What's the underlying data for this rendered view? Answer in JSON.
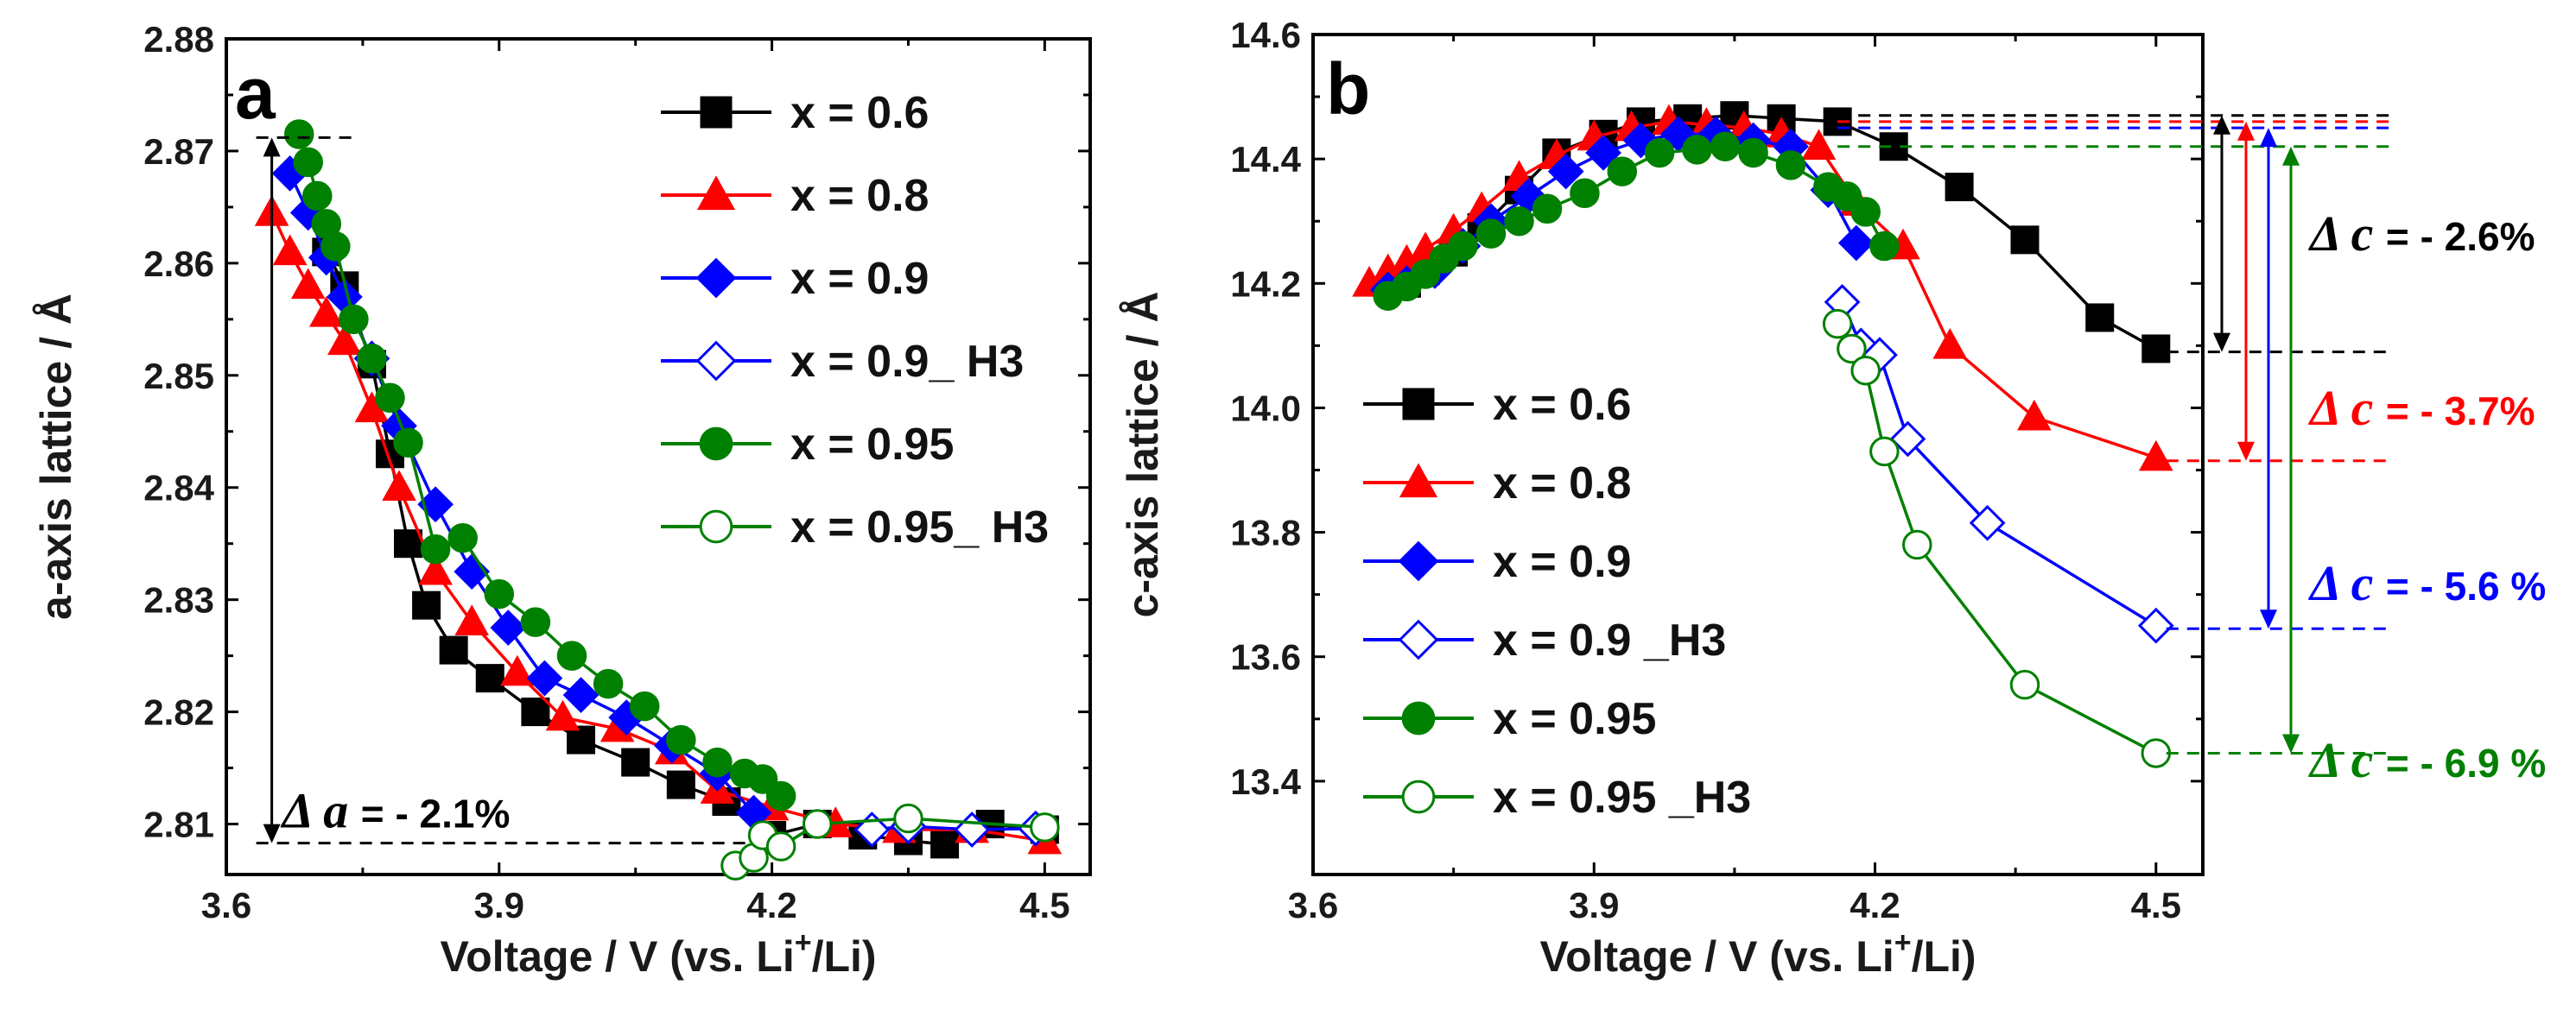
{
  "chart_data": [
    {
      "type": "line",
      "panel_label": "a",
      "xlabel": "Voltage / V (vs. Li",
      "xlabel_sup": "+",
      "xlabel_tail": "/Li)",
      "ylabel": "a-axis lattice / Å",
      "xlim": [
        3.6,
        4.55
      ],
      "ylim": [
        2.8055,
        2.88
      ],
      "xticks": [
        3.6,
        3.9,
        4.2,
        4.5
      ],
      "xtick_labels": [
        "3.6",
        "3.9",
        "4.2",
        "4.5"
      ],
      "yticks": [
        2.81,
        2.82,
        2.83,
        2.84,
        2.85,
        2.86,
        2.87,
        2.88
      ],
      "ytick_labels": [
        "2.81",
        "2.82",
        "2.83",
        "2.84",
        "2.85",
        "2.86",
        "2.87",
        "2.88"
      ],
      "legend_position": "top-right",
      "series": [
        {
          "name": "x = 0.6",
          "color": "#000000",
          "marker": "square",
          "filled": true,
          "x": [
            3.71,
            3.73,
            3.76,
            3.78,
            3.8,
            3.82,
            3.85,
            3.89,
            3.94,
            3.99,
            4.05,
            4.1,
            4.15,
            4.2,
            4.25,
            4.3,
            4.35,
            4.39,
            4.44,
            4.5
          ],
          "y": [
            2.861,
            2.858,
            2.851,
            2.843,
            2.835,
            2.8295,
            2.8255,
            2.823,
            2.82,
            2.8175,
            2.8155,
            2.8135,
            2.812,
            2.809,
            2.81,
            2.809,
            2.8085,
            2.8082,
            2.81,
            2.8095
          ]
        },
        {
          "name": "x = 0.8",
          "color": "#ff0000",
          "marker": "triangle",
          "filled": true,
          "x": [
            3.65,
            3.67,
            3.69,
            3.71,
            3.73,
            3.76,
            3.79,
            3.83,
            3.87,
            3.92,
            3.97,
            4.03,
            4.09,
            4.14,
            4.2,
            4.27,
            4.34,
            4.42,
            4.5
          ],
          "y": [
            2.8645,
            2.861,
            2.858,
            2.8555,
            2.853,
            2.847,
            2.84,
            2.8325,
            2.828,
            2.8235,
            2.8195,
            2.8185,
            2.8165,
            2.813,
            2.8115,
            2.81,
            2.8095,
            2.8095,
            2.8085
          ]
        },
        {
          "name": "x = 0.9",
          "color": "#0000ff",
          "marker": "diamond",
          "filled": true,
          "x": [
            3.67,
            3.69,
            3.71,
            3.73,
            3.76,
            3.79,
            3.83,
            3.87,
            3.91,
            3.95,
            3.99,
            4.04,
            4.09,
            4.14,
            4.18
          ],
          "y": [
            2.868,
            2.8645,
            2.8605,
            2.857,
            2.8515,
            2.8455,
            2.8385,
            2.8325,
            2.8275,
            2.823,
            2.8215,
            2.8195,
            2.817,
            2.8145,
            2.811
          ]
        },
        {
          "name": "x = 0.9_ H3",
          "color": "#0000ff",
          "marker": "diamond",
          "filled": false,
          "x": [
            4.31,
            4.35,
            4.42,
            4.49
          ],
          "y": [
            2.8095,
            2.8098,
            2.8095,
            2.8096
          ]
        },
        {
          "name": "x = 0.95",
          "color": "#008000",
          "marker": "circle",
          "filled": true,
          "x": [
            3.68,
            3.69,
            3.7,
            3.71,
            3.72,
            3.74,
            3.76,
            3.78,
            3.8,
            3.83,
            3.86,
            3.9,
            3.94,
            3.98,
            4.02,
            4.06,
            4.1,
            4.14,
            4.17,
            4.19,
            4.21
          ],
          "y": [
            2.8715,
            2.869,
            2.866,
            2.8635,
            2.8615,
            2.855,
            2.8515,
            2.848,
            2.844,
            2.8345,
            2.8355,
            2.8305,
            2.828,
            2.825,
            2.8225,
            2.8205,
            2.8175,
            2.8155,
            2.8145,
            2.814,
            2.8125
          ]
        },
        {
          "name": "x = 0.95_ H3",
          "color": "#008000",
          "marker": "circle",
          "filled": false,
          "x": [
            4.16,
            4.18,
            4.19,
            4.21,
            4.25,
            4.35,
            4.5
          ],
          "y": [
            2.8063,
            2.807,
            2.809,
            2.808,
            2.81,
            2.8105,
            2.8097
          ]
        }
      ],
      "annotation": {
        "delta_symbol": "Δ",
        "variable": "a",
        "text": "= - 2.1%",
        "top": 2.8712,
        "bottom": 2.8083,
        "x": 3.65
      }
    },
    {
      "type": "line",
      "panel_label": "b",
      "xlabel": "Voltage / V (vs. Li",
      "xlabel_sup": "+",
      "xlabel_tail": "/Li)",
      "ylabel": "c-axis lattice / Å",
      "xlim": [
        3.6,
        4.55
      ],
      "ylim": [
        13.25,
        14.6
      ],
      "xticks": [
        3.6,
        3.9,
        4.2,
        4.5
      ],
      "xtick_labels": [
        "3.6",
        "3.9",
        "4.2",
        "4.5"
      ],
      "yticks": [
        13.4,
        13.6,
        13.8,
        14.0,
        14.2,
        14.4,
        14.6
      ],
      "ytick_labels": [
        "13.4",
        "13.6",
        "13.8",
        "14.0",
        "14.2",
        "14.4",
        "14.6"
      ],
      "legend_position": "bottom-left",
      "series": [
        {
          "name": "x = 0.6",
          "color": "#000000",
          "marker": "square",
          "filled": true,
          "x": [
            3.7,
            3.72,
            3.75,
            3.78,
            3.82,
            3.86,
            3.91,
            3.95,
            4.0,
            4.05,
            4.1,
            4.16,
            4.22,
            4.29,
            4.36,
            4.44,
            4.5
          ],
          "y": [
            14.2,
            14.22,
            14.25,
            14.29,
            14.35,
            14.41,
            14.44,
            14.46,
            14.465,
            14.47,
            14.465,
            14.46,
            14.42,
            14.355,
            14.27,
            14.145,
            14.095
          ]
        },
        {
          "name": "x = 0.8",
          "color": "#ff0000",
          "marker": "triangle",
          "filled": true,
          "x": [
            3.66,
            3.68,
            3.7,
            3.72,
            3.75,
            3.78,
            3.82,
            3.86,
            3.9,
            3.94,
            3.98,
            4.02,
            4.06,
            4.1,
            4.14,
            4.18,
            4.23,
            4.28,
            4.37,
            4.5
          ],
          "y": [
            14.2,
            14.22,
            14.235,
            14.255,
            14.285,
            14.32,
            14.37,
            14.405,
            14.435,
            14.45,
            14.46,
            14.455,
            14.45,
            14.44,
            14.42,
            14.33,
            14.26,
            14.1,
            13.985,
            13.92
          ]
        },
        {
          "name": "x = 0.9",
          "color": "#0000ff",
          "marker": "diamond",
          "filled": true,
          "x": [
            3.68,
            3.7,
            3.73,
            3.76,
            3.79,
            3.83,
            3.87,
            3.91,
            3.95,
            3.99,
            4.03,
            4.07,
            4.11,
            4.15,
            4.18
          ],
          "y": [
            14.19,
            14.2,
            14.22,
            14.26,
            14.3,
            14.34,
            14.38,
            14.41,
            14.43,
            14.44,
            14.44,
            14.43,
            14.42,
            14.35,
            14.265
          ]
        },
        {
          "name": "x = 0.9 _H3",
          "color": "#0000ff",
          "marker": "diamond",
          "filled": false,
          "x": [
            4.165,
            4.185,
            4.205,
            4.235,
            4.32,
            4.5
          ],
          "y": [
            14.17,
            14.1,
            14.085,
            13.95,
            13.815,
            13.65
          ]
        },
        {
          "name": "x = 0.95",
          "color": "#008000",
          "marker": "circle",
          "filled": true,
          "x": [
            3.68,
            3.7,
            3.72,
            3.74,
            3.76,
            3.79,
            3.82,
            3.85,
            3.89,
            3.93,
            3.97,
            4.01,
            4.04,
            4.07,
            4.11,
            4.15,
            4.17,
            4.19,
            4.21
          ],
          "y": [
            14.18,
            14.195,
            14.215,
            14.24,
            14.26,
            14.28,
            14.3,
            14.32,
            14.345,
            14.38,
            14.41,
            14.415,
            14.42,
            14.41,
            14.39,
            14.355,
            14.34,
            14.315,
            14.26
          ]
        },
        {
          "name": "x = 0.95 _H3",
          "color": "#008000",
          "marker": "circle",
          "filled": false,
          "x": [
            4.16,
            4.175,
            4.19,
            4.21,
            4.245,
            4.36,
            4.5
          ],
          "y": [
            14.135,
            14.095,
            14.06,
            13.93,
            13.78,
            13.555,
            13.445
          ]
        }
      ],
      "annotation": {
        "top_levels": [
          {
            "color": "#000000",
            "y": 14.47
          },
          {
            "color": "#ff0000",
            "y": 14.46
          },
          {
            "color": "#0000ff",
            "y": 14.45
          },
          {
            "color": "#008000",
            "y": 14.42
          }
        ],
        "items": [
          {
            "color": "#000000",
            "delta_symbol": "Δ",
            "variable": "c",
            "text": "= - 2.6%",
            "top": 14.47,
            "bottom": 14.09
          },
          {
            "color": "#ff0000",
            "delta_symbol": "Δ",
            "variable": "c",
            "text": "= - 3.7%",
            "top": 14.46,
            "bottom": 13.915
          },
          {
            "color": "#0000ff",
            "delta_symbol": "Δ",
            "variable": "c",
            "text": "= - 5.6 %",
            "top": 14.45,
            "bottom": 13.645
          },
          {
            "color": "#008000",
            "delta_symbol": "Δ",
            "variable": "c",
            "text": "= - 6.9 %",
            "top": 14.42,
            "bottom": 13.445
          }
        ]
      }
    }
  ]
}
